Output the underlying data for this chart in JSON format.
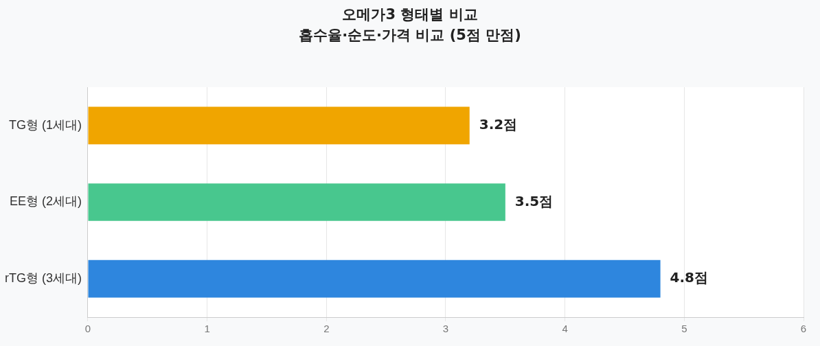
{
  "chart_data": {
    "type": "bar",
    "orientation": "horizontal",
    "title": "오메가3 형태별 비교",
    "subtitle": "흡수율·순도·가격 비교 (5점 만점)",
    "categories": [
      "TG형 (1세대)",
      "EE형 (2세대)",
      "rTG형 (3세대)"
    ],
    "values": [
      3.2,
      3.5,
      4.8
    ],
    "colors": [
      "#f0a500",
      "#48c78e",
      "#2e86de"
    ],
    "value_labels": [
      "3.2점",
      "3.5점",
      "4.8점"
    ],
    "xlim": [
      0,
      6
    ],
    "xticks": [
      0,
      1,
      2,
      3,
      4,
      5,
      6
    ],
    "grid": "x",
    "legend": false
  }
}
